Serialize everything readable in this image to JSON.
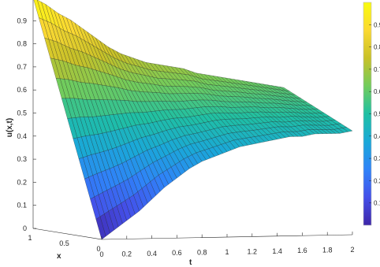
{
  "chart_data": {
    "type": "surface",
    "title": "",
    "xlabel": "x",
    "tlabel": "t",
    "zlabel": "u(x,t)",
    "x_range": [
      0,
      1
    ],
    "t_range": [
      0,
      2
    ],
    "z_range": [
      0,
      1
    ],
    "x_ticks": [
      "0",
      "0.5",
      "1"
    ],
    "t_ticks": [
      "0",
      "0.2",
      "0.4",
      "0.6",
      "0.8",
      "1",
      "1.2",
      "1.4",
      "1.6",
      "1.8",
      "2"
    ],
    "z_ticks": [
      "0",
      "0.1",
      "0.2",
      "0.3",
      "0.4",
      "0.5",
      "0.6",
      "0.7",
      "0.8",
      "0.9",
      "1"
    ],
    "colorbar_ticks": [
      "0.1",
      "0.2",
      "0.3",
      "0.4",
      "0.5",
      "0.6",
      "0.7",
      "0.8",
      "0.9"
    ],
    "colormap": "parula",
    "colors": [
      "#3e26a8",
      "#4450e9",
      "#2f83f8",
      "#1aa8d8",
      "#1fc0a3",
      "#72cc5c",
      "#c8c128",
      "#fbd932",
      "#f9fb0e"
    ],
    "u_at_x1": [
      1.0,
      0.97,
      0.93,
      0.9,
      0.86,
      0.82,
      0.78,
      0.75,
      0.73,
      0.71,
      0.7,
      0.69,
      0.68,
      0.66,
      0.65,
      0.64,
      0.63,
      0.62,
      0.61,
      0.6,
      0.59
    ],
    "u_at_x0": [
      0.0,
      0.04,
      0.08,
      0.12,
      0.17,
      0.22,
      0.26,
      0.3,
      0.33,
      0.35,
      0.37,
      0.39,
      0.4,
      0.41,
      0.42,
      0.43,
      0.43,
      0.44,
      0.44,
      0.44,
      0.45
    ],
    "t_samples": [
      0,
      0.1,
      0.2,
      0.3,
      0.4,
      0.5,
      0.6,
      0.7,
      0.8,
      0.9,
      1.0,
      1.1,
      1.2,
      1.3,
      1.4,
      1.5,
      1.6,
      1.7,
      1.8,
      1.9,
      2.0
    ],
    "grid": false,
    "colorbar": "right"
  }
}
